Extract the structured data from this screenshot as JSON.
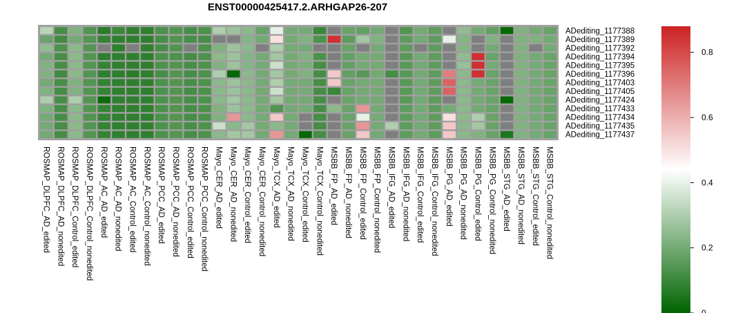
{
  "chart_data": {
    "type": "heatmap",
    "title": "ENST00000425417.2.ARHGAP26-207",
    "xlabel": "",
    "ylabel": "",
    "columns": [
      "ROSMAP_DLPFC_AD_edited",
      "ROSMAP_DLPFC_AD_nonedited",
      "ROSMAP_DLPFC_Control_edited",
      "ROSMAP_DLPFC_Control_nonedited",
      "ROSMAP_AC_AD_edited",
      "ROSMAP_AC_AD_nonedited",
      "ROSMAP_AC_Control_edited",
      "ROSMAP_AC_Control_nonedited",
      "ROSMAP_PCC_AD_edited",
      "ROSMAP_PCC_AD_nonedited",
      "ROSMAP_PCC_Control_edited",
      "ROSMAP_PCC_Control_nonedited",
      "Mayo_CER_AD_edited",
      "Mayo_CER_AD_nonedited",
      "Mayo_CER_Control_edited",
      "Mayo_CER_Control_nonedited",
      "Mayo_TCX_AD_edited",
      "Mayo_TCX_AD_nonedited",
      "Mayo_TCX_Control_edited",
      "Mayo_TCX_Control_nonedited",
      "MSBB_FP_AD_edited",
      "MSBB_FP_AD_nonedited",
      "MSBB_FP_Control_edited",
      "MSBB_FP_Control_nonedited",
      "MSBB_IFG_AD_edited",
      "MSBB_IFG_AD_nonedited",
      "MSBB_IFG_Control_edited",
      "MSBB_IFG_Control_nonedited",
      "MSBB_PG_AD_edited",
      "MSBB_PG_AD_nonedited",
      "MSBB_PG_Control_edited",
      "MSBB_PG_Control_nonedited",
      "MSBB_STG_AD_edited",
      "MSBB_STG_AD_nonedited",
      "MSBB_STG_Control_edited",
      "MSBB_STG_Control_nonedited"
    ],
    "rows": [
      "ADediting_1177388",
      "ADediting_1177389",
      "ADediting_1177392",
      "ADediting_1177394",
      "ADediting_1177395",
      "ADediting_1177396",
      "ADediting_1177403",
      "ADediting_1177405",
      "ADediting_1177424",
      "ADediting_1177433",
      "ADediting_1177434",
      "ADediting_1177435",
      "ADediting_1177437"
    ],
    "values": [
      [
        0.32,
        0.12,
        0.22,
        0.14,
        0.07,
        0.1,
        0.08,
        0.08,
        0.13,
        0.14,
        0.12,
        0.13,
        0.3,
        0.27,
        0.24,
        0.18,
        0.4,
        0.2,
        0.2,
        0.1,
        null,
        0.18,
        0.17,
        0.2,
        null,
        0.14,
        0.2,
        0.16,
        null,
        0.25,
        0.2,
        0.17,
        0.01,
        0.22,
        0.2,
        0.18
      ],
      [
        0.18,
        0.11,
        0.2,
        0.14,
        0.09,
        0.08,
        0.08,
        0.08,
        0.12,
        0.14,
        0.12,
        0.12,
        null,
        null,
        0.23,
        0.2,
        0.5,
        0.2,
        0.22,
        0.13,
        0.85,
        0.16,
        0.28,
        0.22,
        null,
        0.16,
        0.2,
        0.16,
        0.4,
        0.23,
        null,
        0.22,
        null,
        0.22,
        0.22,
        0.2
      ],
      [
        0.25,
        0.13,
        0.24,
        0.14,
        null,
        0.08,
        null,
        0.08,
        0.12,
        0.14,
        null,
        0.13,
        0.22,
        0.27,
        0.24,
        null,
        0.3,
        0.2,
        0.2,
        null,
        null,
        0.18,
        null,
        0.2,
        null,
        0.16,
        null,
        0.16,
        null,
        0.23,
        null,
        0.2,
        null,
        0.22,
        null,
        0.2
      ],
      [
        0.2,
        0.12,
        0.24,
        0.14,
        0.08,
        0.08,
        0.08,
        0.08,
        0.13,
        0.13,
        0.12,
        0.13,
        0.24,
        0.27,
        0.23,
        0.2,
        0.28,
        0.2,
        0.22,
        0.13,
        null,
        0.17,
        0.2,
        0.2,
        null,
        0.15,
        0.2,
        0.16,
        null,
        0.25,
        0.85,
        0.18,
        null,
        0.22,
        0.2,
        0.18
      ],
      [
        0.22,
        0.12,
        0.24,
        0.14,
        0.09,
        0.08,
        0.08,
        0.08,
        0.13,
        0.14,
        0.12,
        0.13,
        0.22,
        0.27,
        0.23,
        0.2,
        0.35,
        0.2,
        0.21,
        0.12,
        null,
        0.17,
        0.2,
        0.2,
        null,
        0.15,
        0.2,
        0.16,
        null,
        0.26,
        0.85,
        0.2,
        null,
        0.22,
        0.2,
        0.18
      ],
      [
        0.22,
        0.11,
        0.24,
        0.14,
        0.08,
        0.08,
        0.07,
        0.08,
        0.12,
        0.14,
        0.12,
        0.13,
        0.3,
        0.01,
        0.24,
        0.2,
        0.28,
        0.2,
        0.22,
        0.12,
        0.55,
        0.17,
        0.15,
        0.2,
        0.12,
        0.15,
        0.2,
        0.16,
        0.7,
        0.24,
        0.85,
        0.18,
        null,
        0.22,
        0.2,
        0.18
      ],
      [
        0.2,
        0.12,
        0.22,
        0.14,
        0.09,
        0.08,
        0.08,
        0.08,
        0.13,
        0.14,
        0.12,
        0.13,
        0.24,
        0.27,
        0.24,
        0.2,
        0.3,
        0.2,
        0.2,
        0.12,
        0.55,
        0.18,
        0.2,
        0.2,
        null,
        0.15,
        0.2,
        0.16,
        0.75,
        0.24,
        0.2,
        0.18,
        null,
        0.22,
        0.2,
        0.18
      ],
      [
        0.22,
        0.12,
        0.22,
        0.14,
        0.09,
        0.08,
        0.08,
        0.08,
        0.13,
        0.14,
        0.12,
        0.13,
        0.24,
        0.27,
        0.24,
        0.2,
        0.35,
        0.2,
        0.2,
        0.12,
        0.1,
        0.18,
        0.2,
        0.2,
        null,
        0.15,
        0.2,
        0.16,
        0.75,
        0.24,
        0.2,
        0.18,
        null,
        0.22,
        0.2,
        0.18
      ],
      [
        0.3,
        0.12,
        0.3,
        0.14,
        0.02,
        0.08,
        0.08,
        0.08,
        0.13,
        0.14,
        0.12,
        0.13,
        0.24,
        0.28,
        0.24,
        0.2,
        0.28,
        0.2,
        0.2,
        0.12,
        null,
        0.18,
        0.2,
        0.2,
        null,
        0.15,
        0.2,
        0.16,
        null,
        0.24,
        0.2,
        0.18,
        0.01,
        0.22,
        0.2,
        0.18
      ],
      [
        0.22,
        0.12,
        0.24,
        0.14,
        0.09,
        0.08,
        0.08,
        0.08,
        0.13,
        0.14,
        0.12,
        0.13,
        0.22,
        0.27,
        0.24,
        0.2,
        0.14,
        0.2,
        0.2,
        0.12,
        0.24,
        0.18,
        0.65,
        0.2,
        null,
        0.16,
        0.2,
        0.16,
        0.2,
        0.24,
        0.2,
        0.18,
        null,
        0.22,
        0.2,
        0.18
      ],
      [
        0.2,
        0.12,
        0.24,
        0.14,
        0.09,
        0.08,
        0.08,
        0.08,
        0.13,
        0.14,
        0.12,
        0.13,
        0.22,
        0.65,
        0.24,
        0.2,
        0.55,
        0.2,
        null,
        0.12,
        null,
        0.18,
        0.4,
        0.2,
        null,
        0.16,
        0.2,
        0.16,
        0.5,
        0.24,
        0.3,
        0.18,
        null,
        0.22,
        0.2,
        0.18
      ],
      [
        0.2,
        0.12,
        0.24,
        0.14,
        0.09,
        0.08,
        0.08,
        0.08,
        0.13,
        0.14,
        0.12,
        0.13,
        0.35,
        0.24,
        0.28,
        0.2,
        0.24,
        0.2,
        null,
        0.12,
        null,
        0.18,
        0.65,
        0.2,
        0.3,
        0.16,
        0.2,
        0.16,
        0.55,
        0.24,
        0.28,
        0.18,
        null,
        0.22,
        0.2,
        0.18
      ],
      [
        0.2,
        0.12,
        0.24,
        0.14,
        0.09,
        0.08,
        0.08,
        0.08,
        0.13,
        0.14,
        0.12,
        0.13,
        0.24,
        0.28,
        0.28,
        0.2,
        0.65,
        0.2,
        0.01,
        0.12,
        null,
        0.18,
        0.55,
        0.2,
        null,
        0.16,
        0.2,
        0.16,
        0.55,
        0.24,
        0.22,
        0.18,
        0.05,
        0.22,
        0.2,
        0.18
      ]
    ],
    "missing_color": "#7f7f7f",
    "border_color": "#a0a0a0",
    "color_scale": {
      "min": 0,
      "max": 0.88,
      "stops": [
        {
          "value": 0,
          "color": "#006400"
        },
        {
          "value": 0.44,
          "color": "#ffffff"
        },
        {
          "value": 0.88,
          "color": "#cc2222"
        }
      ],
      "ticks": [
        0,
        0.2,
        0.4,
        0.6,
        0.8
      ]
    },
    "legend": "right"
  }
}
